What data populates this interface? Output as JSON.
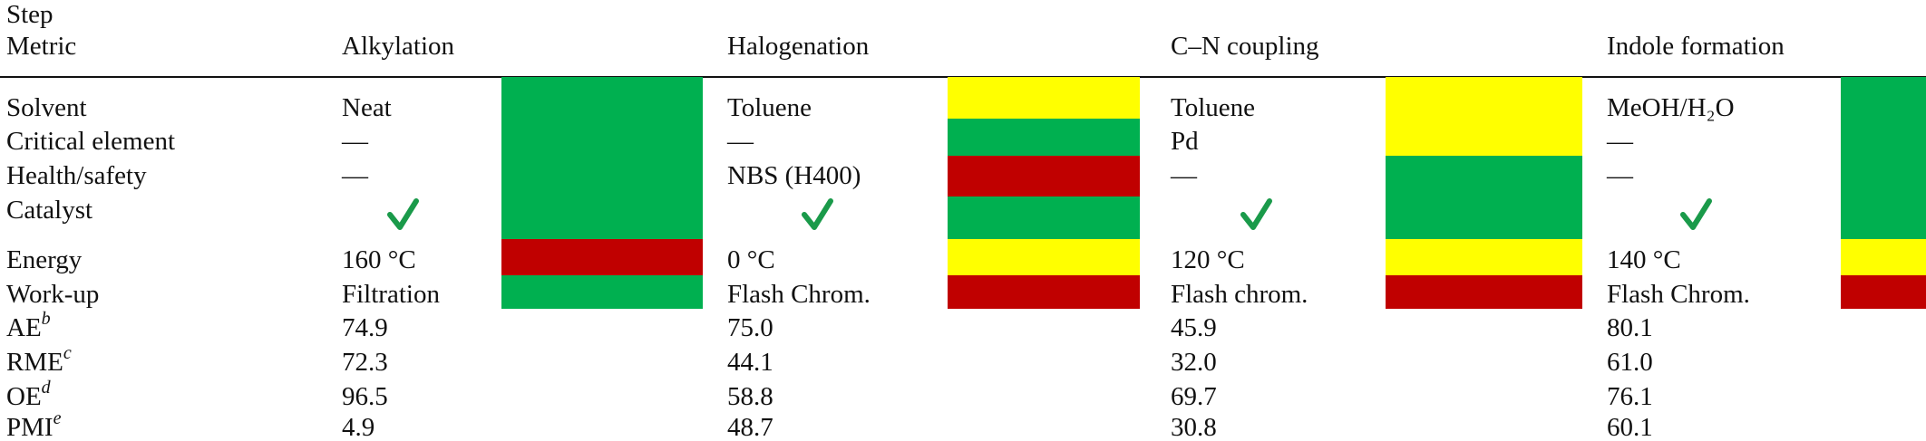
{
  "header": {
    "step": "Step",
    "metric": "Metric"
  },
  "steps": [
    "Alkylation",
    "Halogenation",
    "C–N coupling",
    "Indole formation"
  ],
  "rows": [
    {
      "metric": "Solvent",
      "cells": [
        "Neat",
        "Toluene",
        "Toluene",
        "MeOH/H₂O"
      ]
    },
    {
      "metric": "Critical element",
      "cells": [
        "—",
        "—",
        "Pd",
        "—"
      ]
    },
    {
      "metric": "Health/safety",
      "cells": [
        "—",
        "NBS (H400)",
        "—",
        "—"
      ]
    },
    {
      "metric": "Catalyst"
    },
    {
      "metric": "Energy",
      "cells": [
        "160 °C",
        "0 °C",
        "120 °C",
        "140 °C"
      ]
    },
    {
      "metric": "Work-up",
      "cells": [
        "Filtration",
        "Flash Chrom.",
        "Flash chrom.",
        "Flash Chrom."
      ]
    },
    {
      "metric": "AE",
      "note": "b",
      "cells": [
        "74.9",
        "75.0",
        "45.9",
        "80.1"
      ]
    },
    {
      "metric": "RME",
      "note": "c",
      "cells": [
        "72.3",
        "44.1",
        "32.0",
        "61.0"
      ]
    },
    {
      "metric": "OE",
      "note": "d",
      "cells": [
        "96.5",
        "58.8",
        "69.7",
        "76.1"
      ]
    },
    {
      "metric": "PMI",
      "note": "e",
      "cells": [
        "4.9",
        "48.7",
        "30.8",
        "60.1"
      ]
    }
  ],
  "ratings": [
    [
      "#00b050",
      "#00b050",
      "#00b050",
      "#00b050",
      "#c00000",
      "#00b050"
    ],
    [
      "#ffff00",
      "#00b050",
      "#c00000",
      "#00b050",
      "#ffff00",
      "#c00000"
    ],
    [
      "#ffff00",
      "#ffff00",
      "#00b050",
      "#00b050",
      "#ffff00",
      "#c00000"
    ],
    [
      "#00b050",
      "#00b050",
      "#00b050",
      "#00b050",
      "#ffff00",
      "#c00000"
    ]
  ]
}
